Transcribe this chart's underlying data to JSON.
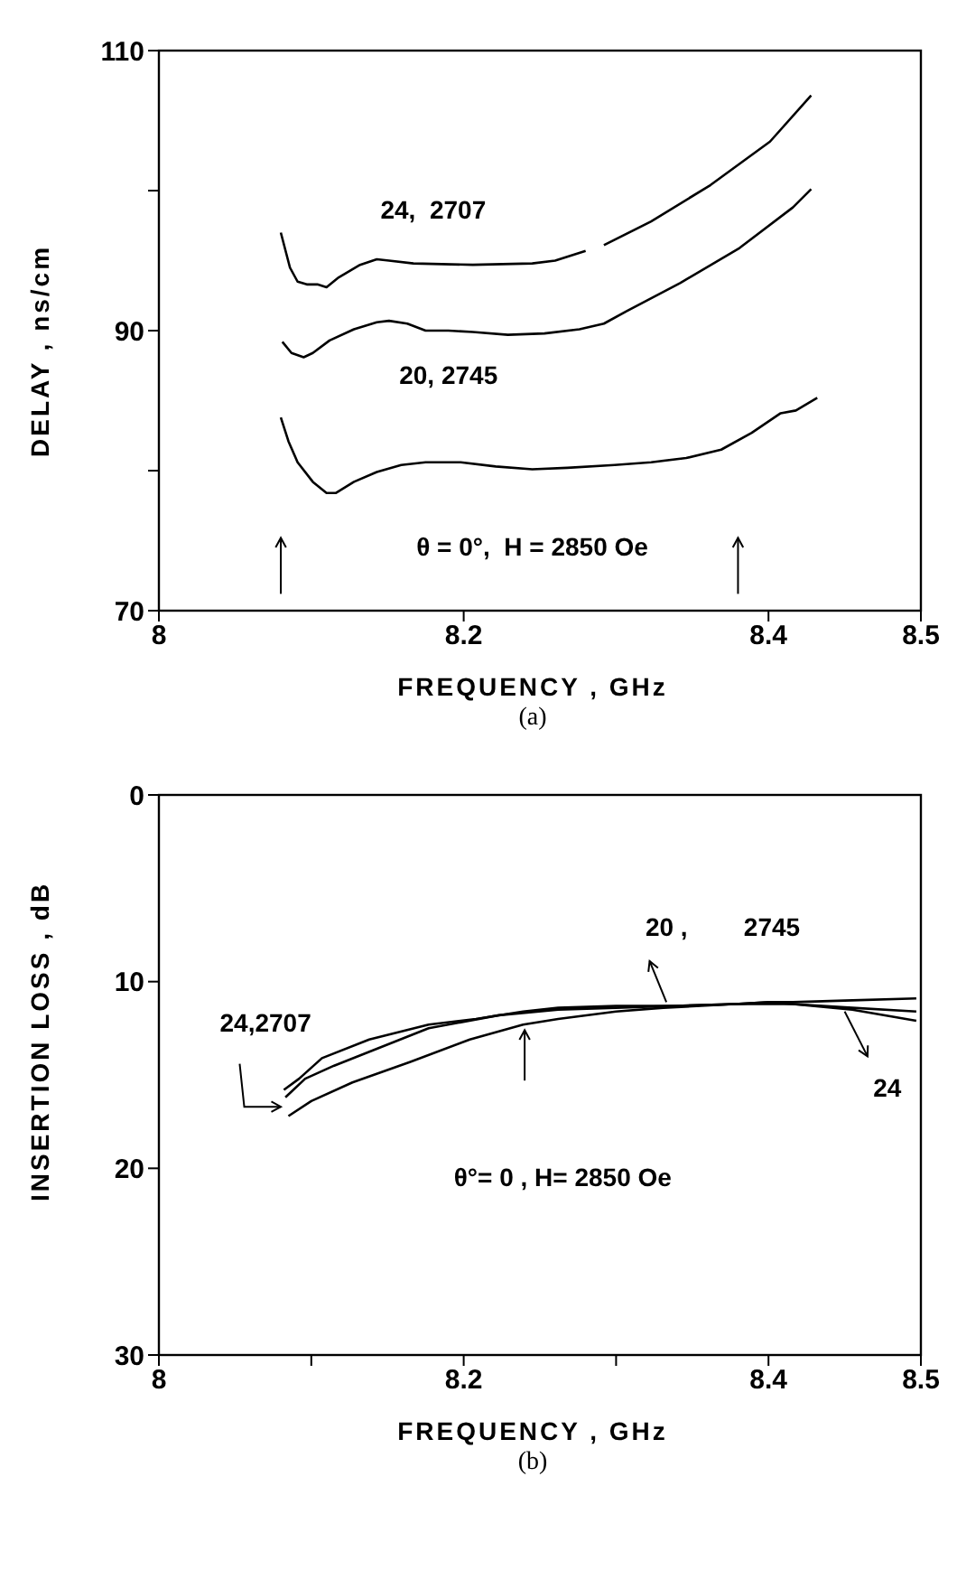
{
  "chart_data": [
    {
      "type": "line",
      "xlabel": "FREQUENCY , GHz",
      "ylabel": "DELAY , ns/cm",
      "xlim": [
        8,
        8.5
      ],
      "xticks": [
        8,
        8.2,
        8.4,
        8.5
      ],
      "ylim": [
        70,
        110
      ],
      "yticks": [
        70,
        {
          "value": 80,
          "label": null
        },
        90,
        {
          "value": 100,
          "label": null
        },
        110
      ],
      "grid": false,
      "marker": "none",
      "line_style": "solid",
      "annotations": [
        "24,  2707",
        "20, 2745",
        "θ = 0°,  H = 2850 Oe",
        "(a)"
      ],
      "series": [
        {
          "color": "#000000",
          "x": [
            8.08,
            8.086,
            8.091,
            8.097,
            8.104,
            8.11,
            8.118,
            8.132,
            8.143,
            8.151,
            8.167,
            8.206,
            8.245,
            8.26,
            8.28,
            8.286,
            8.292,
            8.323,
            8.362,
            8.401,
            8.428
          ],
          "values": [
            97.0,
            94.5,
            93.5,
            93.3,
            93.3,
            93.1,
            93.8,
            94.7,
            95.1,
            95.0,
            94.8,
            94.7,
            94.8,
            95.0,
            95.7,
            null,
            96.1,
            97.8,
            100.4,
            103.5,
            106.8
          ]
        },
        {
          "color": "#000000",
          "x": [
            8.081,
            8.087,
            8.095,
            8.101,
            8.112,
            8.128,
            8.143,
            8.151,
            8.163,
            8.175,
            8.19,
            8.206,
            8.229,
            8.253,
            8.276,
            8.292,
            8.307,
            8.342,
            8.381,
            8.416,
            8.428
          ],
          "values": [
            89.2,
            88.4,
            88.1,
            88.4,
            89.3,
            90.1,
            90.6,
            90.7,
            90.5,
            90.0,
            90.0,
            89.9,
            89.7,
            89.8,
            90.1,
            90.5,
            91.4,
            93.4,
            95.9,
            98.8,
            100.1
          ]
        },
        {
          "color": "#000000",
          "x": [
            8.08,
            8.085,
            8.091,
            8.101,
            8.11,
            8.116,
            8.128,
            8.143,
            8.159,
            8.175,
            8.198,
            8.221,
            8.245,
            8.268,
            8.299,
            8.323,
            8.346,
            8.369,
            8.389,
            8.408,
            8.418,
            8.432
          ],
          "values": [
            83.8,
            82.1,
            80.6,
            79.2,
            78.4,
            78.4,
            79.2,
            79.9,
            80.4,
            80.6,
            80.6,
            80.3,
            80.1,
            80.2,
            80.4,
            80.6,
            80.9,
            81.5,
            82.7,
            84.1,
            84.3,
            85.2
          ]
        }
      ]
    },
    {
      "type": "line",
      "xlabel": "FREQUENCY , GHz",
      "ylabel": "INSERTION LOSS , dB",
      "xlim": [
        8,
        8.5
      ],
      "xticks": [
        8,
        {
          "value": 8.1,
          "label": null
        },
        8.2,
        {
          "value": 8.3,
          "label": null
        },
        8.4,
        8.5
      ],
      "ylim": [
        30,
        0
      ],
      "yticks": [
        0,
        10,
        20,
        30
      ],
      "grid": false,
      "marker": "none",
      "line_style": "solid",
      "annotations": [
        "24,2707",
        "20 ,        2745",
        "24",
        "θ°= 0 , H= 2850 Oe",
        "(b)"
      ],
      "series": [
        {
          "color": "#000000",
          "x": [
            8.082,
            8.092,
            8.107,
            8.138,
            8.177,
            8.208,
            8.239,
            8.262,
            8.3,
            8.339,
            8.378,
            8.401,
            8.416,
            8.455,
            8.497
          ],
          "values": [
            15.8,
            15.2,
            14.1,
            13.1,
            12.3,
            12.0,
            11.6,
            11.4,
            11.3,
            11.3,
            11.2,
            11.1,
            11.1,
            11.0,
            10.9
          ]
        },
        {
          "color": "#000000",
          "x": [
            8.083,
            8.096,
            8.115,
            8.146,
            8.177,
            8.223,
            8.262,
            8.3,
            8.339,
            8.378,
            8.416,
            8.455,
            8.497
          ],
          "values": [
            16.2,
            15.2,
            14.5,
            13.5,
            12.5,
            11.8,
            11.5,
            11.4,
            11.3,
            11.2,
            11.2,
            11.5,
            12.1
          ]
        },
        {
          "color": "#000000",
          "x": [
            8.085,
            8.1,
            8.127,
            8.165,
            8.204,
            8.239,
            8.262,
            8.3,
            8.331,
            8.378,
            8.401,
            8.416,
            8.455,
            8.497
          ],
          "values": [
            17.2,
            16.4,
            15.4,
            14.3,
            13.1,
            12.3,
            12.0,
            11.6,
            11.4,
            11.2,
            11.1,
            11.2,
            11.4,
            11.6
          ]
        }
      ]
    }
  ]
}
